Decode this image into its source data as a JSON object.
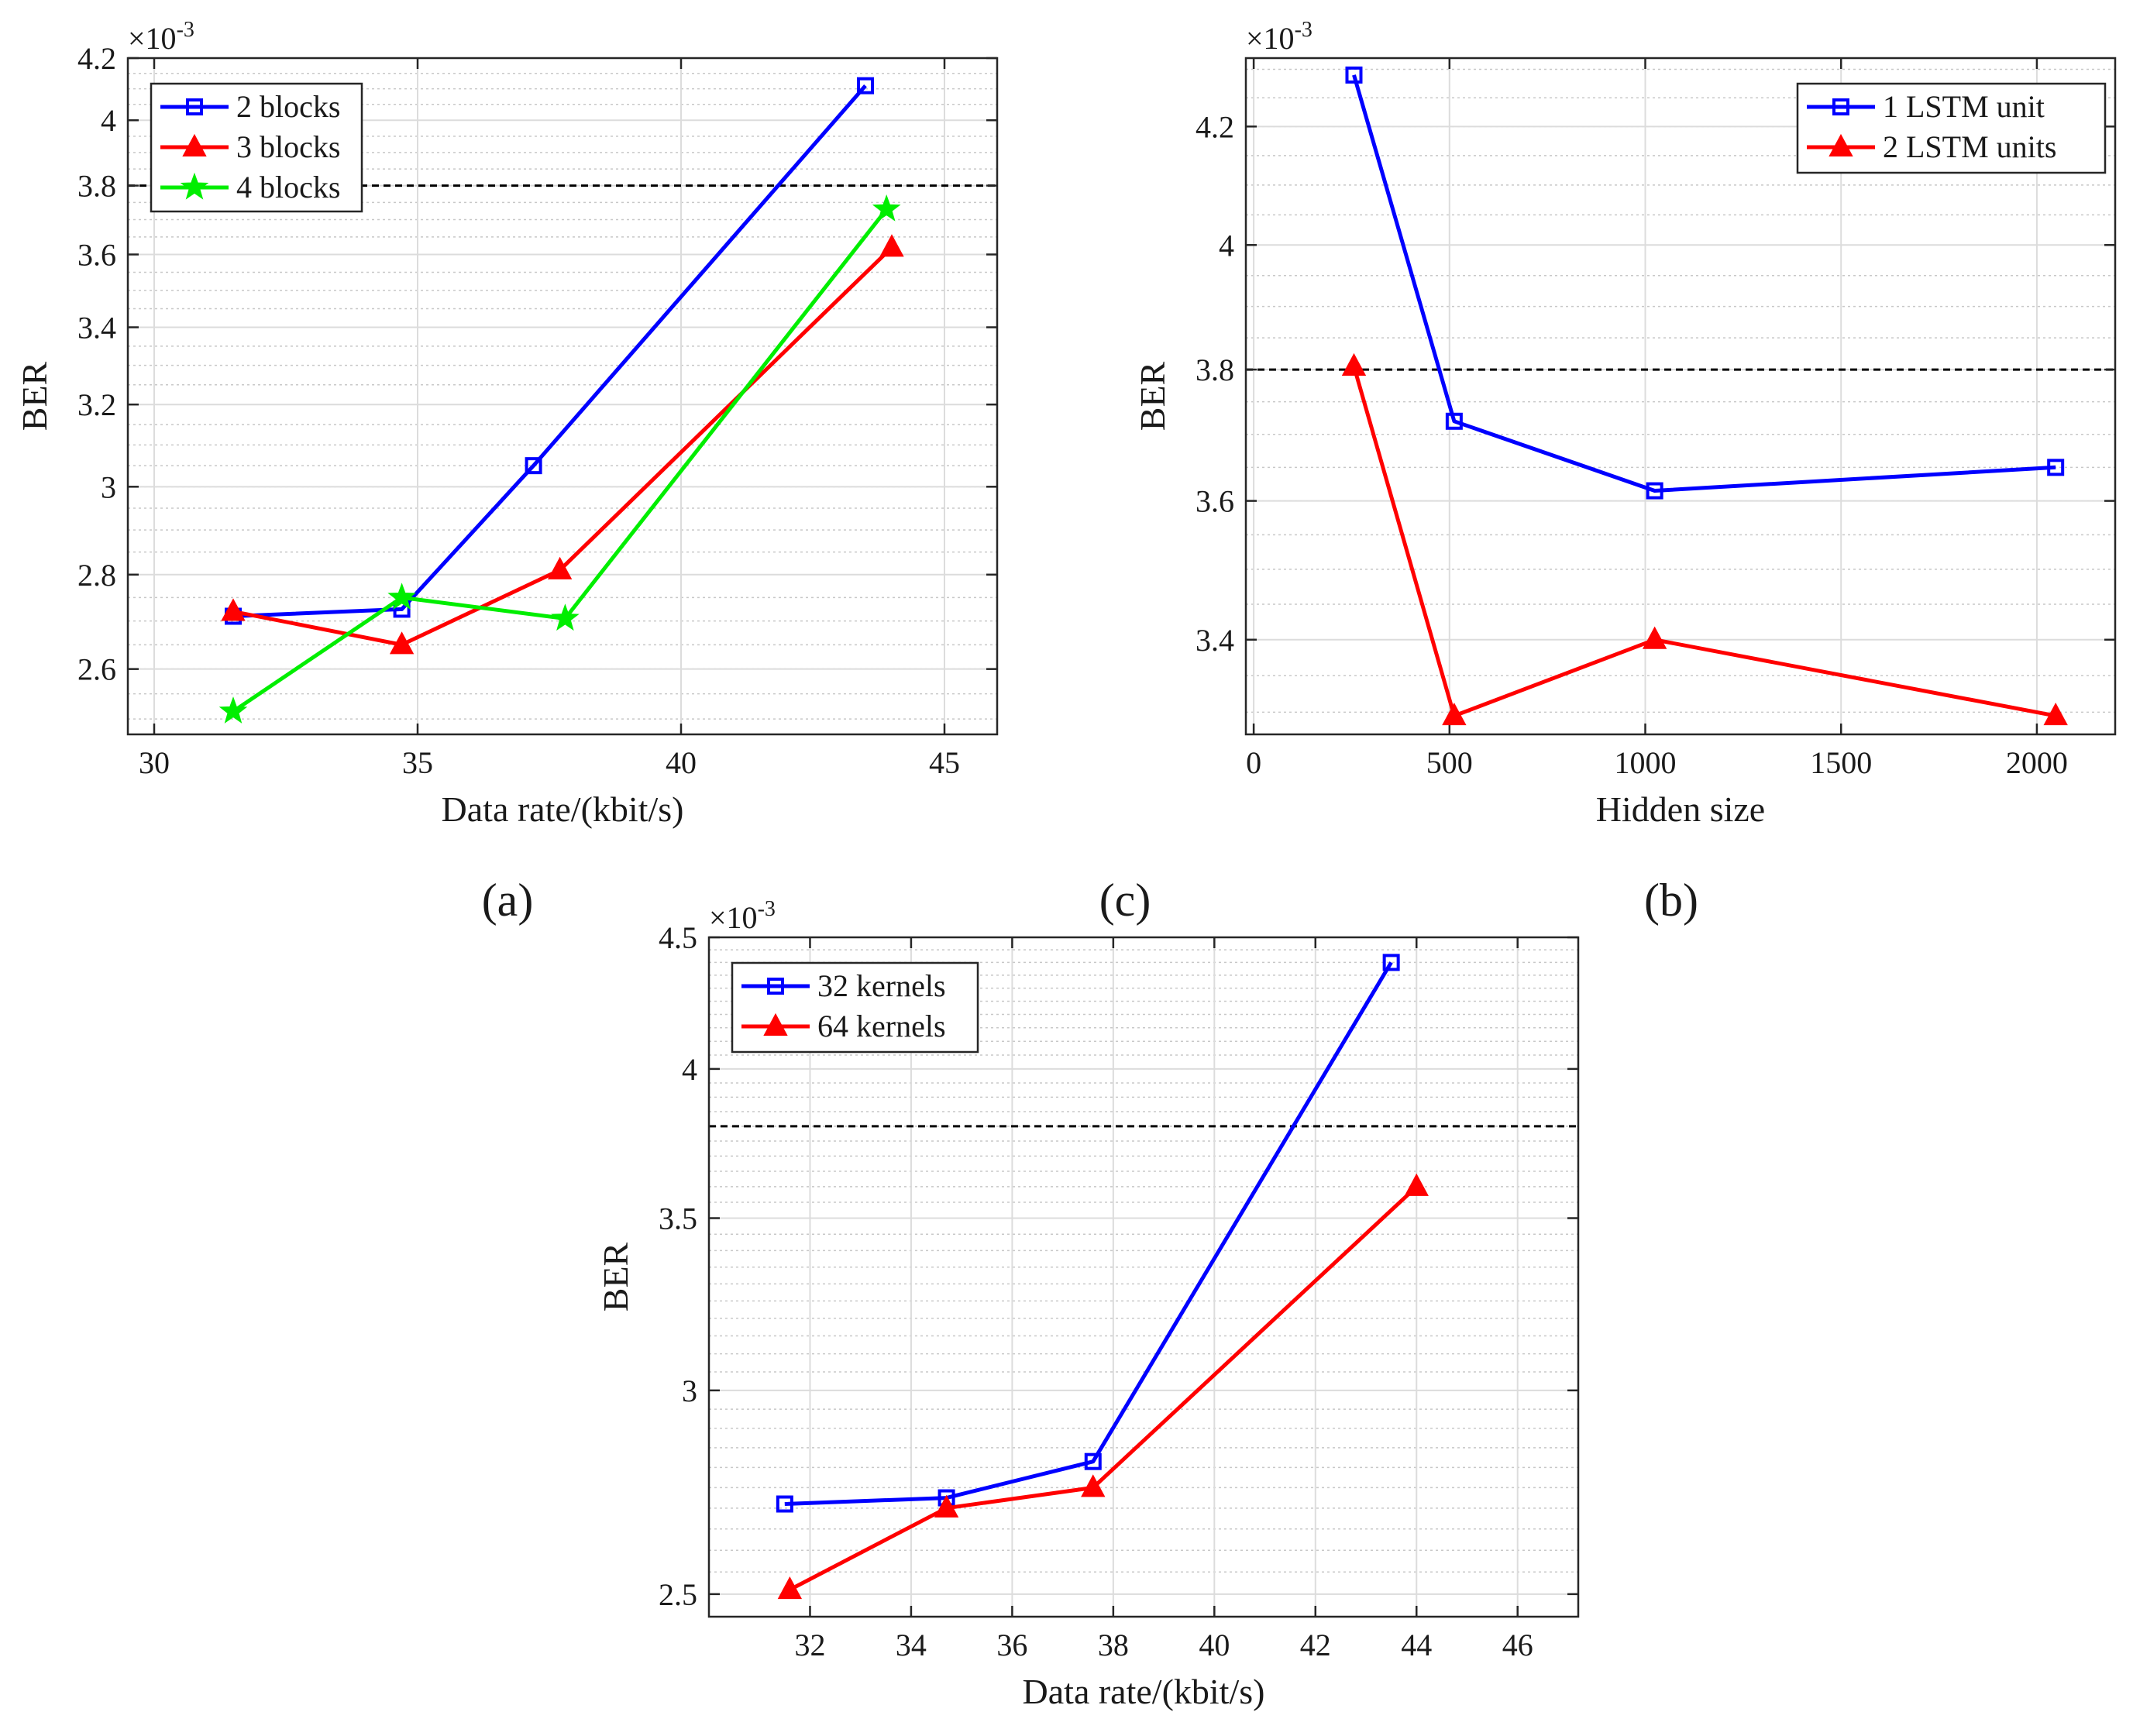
{
  "panel_labels": [
    "(a)",
    "(c)",
    "(b)"
  ],
  "chart_data": [
    {
      "id": "a",
      "type": "line",
      "xlabel": "Data rate/(kbit/s)",
      "ylabel": "BER",
      "y_exponent_base": "×10",
      "y_exponent_power": "-3",
      "xlim": [
        29.5,
        46
      ],
      "ylim": [
        2.47,
        4.2
      ],
      "yscale": "log",
      "xticks": [
        30,
        35,
        40,
        45
      ],
      "xtick_labels": [
        "30",
        "35",
        "40",
        "45"
      ],
      "yticks": [
        2.6,
        2.8,
        3.0,
        3.2,
        3.4,
        3.6,
        3.8,
        4.0,
        4.2
      ],
      "ytick_labels": [
        "2.6",
        "2.8",
        "3",
        "3.2",
        "3.4",
        "3.6",
        "3.8",
        "4",
        "4.2"
      ],
      "reference_line": 3.8,
      "legend_position": "top-left",
      "series": [
        {
          "name": "2 blocks",
          "color": "#0000ff",
          "marker": "square",
          "x": [
            31.5,
            34.7,
            37.2,
            43.5
          ],
          "y": [
            2.71,
            2.725,
            3.05,
            4.11
          ]
        },
        {
          "name": "3 blocks",
          "color": "#ff0000",
          "marker": "triangle",
          "x": [
            31.5,
            34.7,
            37.7,
            44.0
          ],
          "y": [
            2.72,
            2.65,
            2.81,
            3.62
          ]
        },
        {
          "name": "4 blocks",
          "color": "#00ee00",
          "marker": "star",
          "x": [
            31.5,
            34.7,
            37.8,
            43.9
          ],
          "y": [
            2.515,
            2.75,
            2.705,
            3.73
          ]
        }
      ]
    },
    {
      "id": "b",
      "type": "line",
      "xlabel": "Hidden size",
      "ylabel": "BER",
      "y_exponent_base": "×10",
      "y_exponent_power": "-3",
      "xlim": [
        -20,
        2200
      ],
      "ylim": [
        3.27,
        4.32
      ],
      "yscale": "log",
      "xticks": [
        0,
        500,
        1000,
        1500,
        2000
      ],
      "xtick_labels": [
        "0",
        "500",
        "1000",
        "1500",
        "2000"
      ],
      "yticks": [
        3.4,
        3.6,
        3.8,
        4.0,
        4.2
      ],
      "ytick_labels": [
        "3.4",
        "3.6",
        "3.8",
        "4",
        "4.2"
      ],
      "reference_line": 3.8,
      "legend_position": "top-right",
      "series": [
        {
          "name": "1 LSTM unit",
          "color": "#0000ff",
          "marker": "square",
          "x": [
            256,
            512,
            1024,
            2048
          ],
          "y": [
            4.29,
            3.72,
            3.615,
            3.65
          ]
        },
        {
          "name": "2 LSTM units",
          "color": "#ff0000",
          "marker": "triangle",
          "x": [
            256,
            512,
            1024,
            2048
          ],
          "y": [
            3.805,
            3.295,
            3.4,
            3.295
          ]
        }
      ]
    },
    {
      "id": "c",
      "type": "line",
      "xlabel": "Data rate/(kbit/s)",
      "ylabel": "BER",
      "y_exponent_base": "×10",
      "y_exponent_power": "-3",
      "xlim": [
        30,
        47.2
      ],
      "ylim": [
        2.45,
        4.5
      ],
      "yscale": "log",
      "xticks": [
        32,
        34,
        36,
        38,
        40,
        42,
        44,
        46
      ],
      "xtick_labels": [
        "32",
        "34",
        "36",
        "38",
        "40",
        "42",
        "44",
        "46"
      ],
      "yticks": [
        2.5,
        3.0,
        3.5,
        4.0,
        4.5
      ],
      "ytick_labels": [
        "2.5",
        "3",
        "3.5",
        "4",
        "4.5"
      ],
      "reference_line": 3.8,
      "legend_position": "top-left",
      "series": [
        {
          "name": "32 kernels",
          "color": "#0000ff",
          "marker": "square",
          "x": [
            31.5,
            34.7,
            37.6,
            43.5
          ],
          "y": [
            2.71,
            2.725,
            2.815,
            4.4
          ]
        },
        {
          "name": "64 kernels",
          "color": "#ff0000",
          "marker": "triangle",
          "x": [
            31.6,
            34.7,
            37.6,
            44.0
          ],
          "y": [
            2.51,
            2.7,
            2.75,
            3.6
          ]
        }
      ]
    }
  ]
}
